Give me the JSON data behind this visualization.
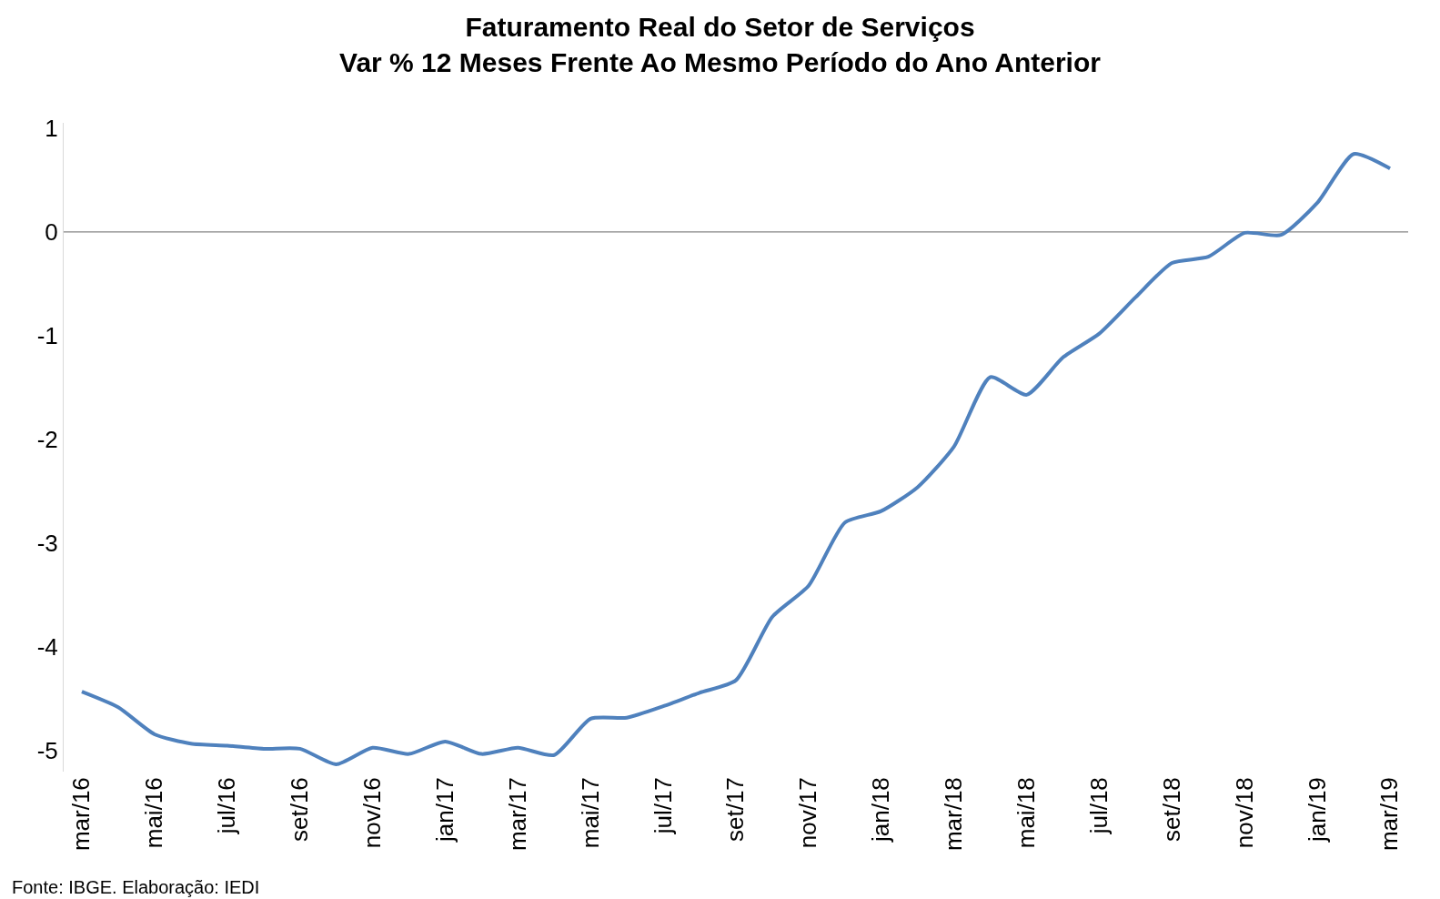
{
  "chart_data": {
    "type": "line",
    "title": "Faturamento Real do Setor de Serviços",
    "subtitle": "Var % 12 Meses Frente Ao Mesmo Período do Ano Anterior",
    "categories": [
      "mar/16",
      null,
      "mai/16",
      null,
      "jul/16",
      null,
      "set/16",
      null,
      "nov/16",
      null,
      "jan/17",
      null,
      "mar/17",
      null,
      "mai/17",
      null,
      "jul/17",
      null,
      "set/17",
      null,
      "nov/17",
      null,
      "jan/18",
      null,
      "mar/18",
      null,
      "mai/18",
      null,
      "jul/18",
      null,
      "set/18",
      null,
      "nov/18",
      null,
      "jan/19",
      null,
      "mar/19"
    ],
    "series": [
      {
        "color": "#4f81bd",
        "values": [
          -4.43,
          -4.58,
          -4.84,
          -4.93,
          -4.95,
          -4.98,
          -4.98,
          -5.13,
          -4.97,
          -5.03,
          -4.91,
          -5.03,
          -4.97,
          -5.04,
          -4.69,
          -4.68,
          -4.57,
          -4.44,
          -4.32,
          -3.71,
          -3.41,
          -2.8,
          -2.69,
          -2.46,
          -2.07,
          -1.4,
          -1.57,
          -1.21,
          -0.98,
          -0.63,
          -0.3,
          -0.24,
          -0.01,
          -0.03,
          0.28,
          0.75,
          0.61
        ]
      }
    ],
    "ylim": [
      -5.2,
      1.05
    ],
    "yticks": [
      -5,
      -4,
      -3,
      -2,
      -1,
      0,
      1
    ],
    "ref_lines": [
      {
        "axis": "y",
        "value": 0,
        "color": "#868686"
      }
    ],
    "grid": false,
    "marker": "none",
    "line_style": "solid",
    "annotations": [
      "Fonte: IBGE. Elaboração: IEDI"
    ]
  }
}
